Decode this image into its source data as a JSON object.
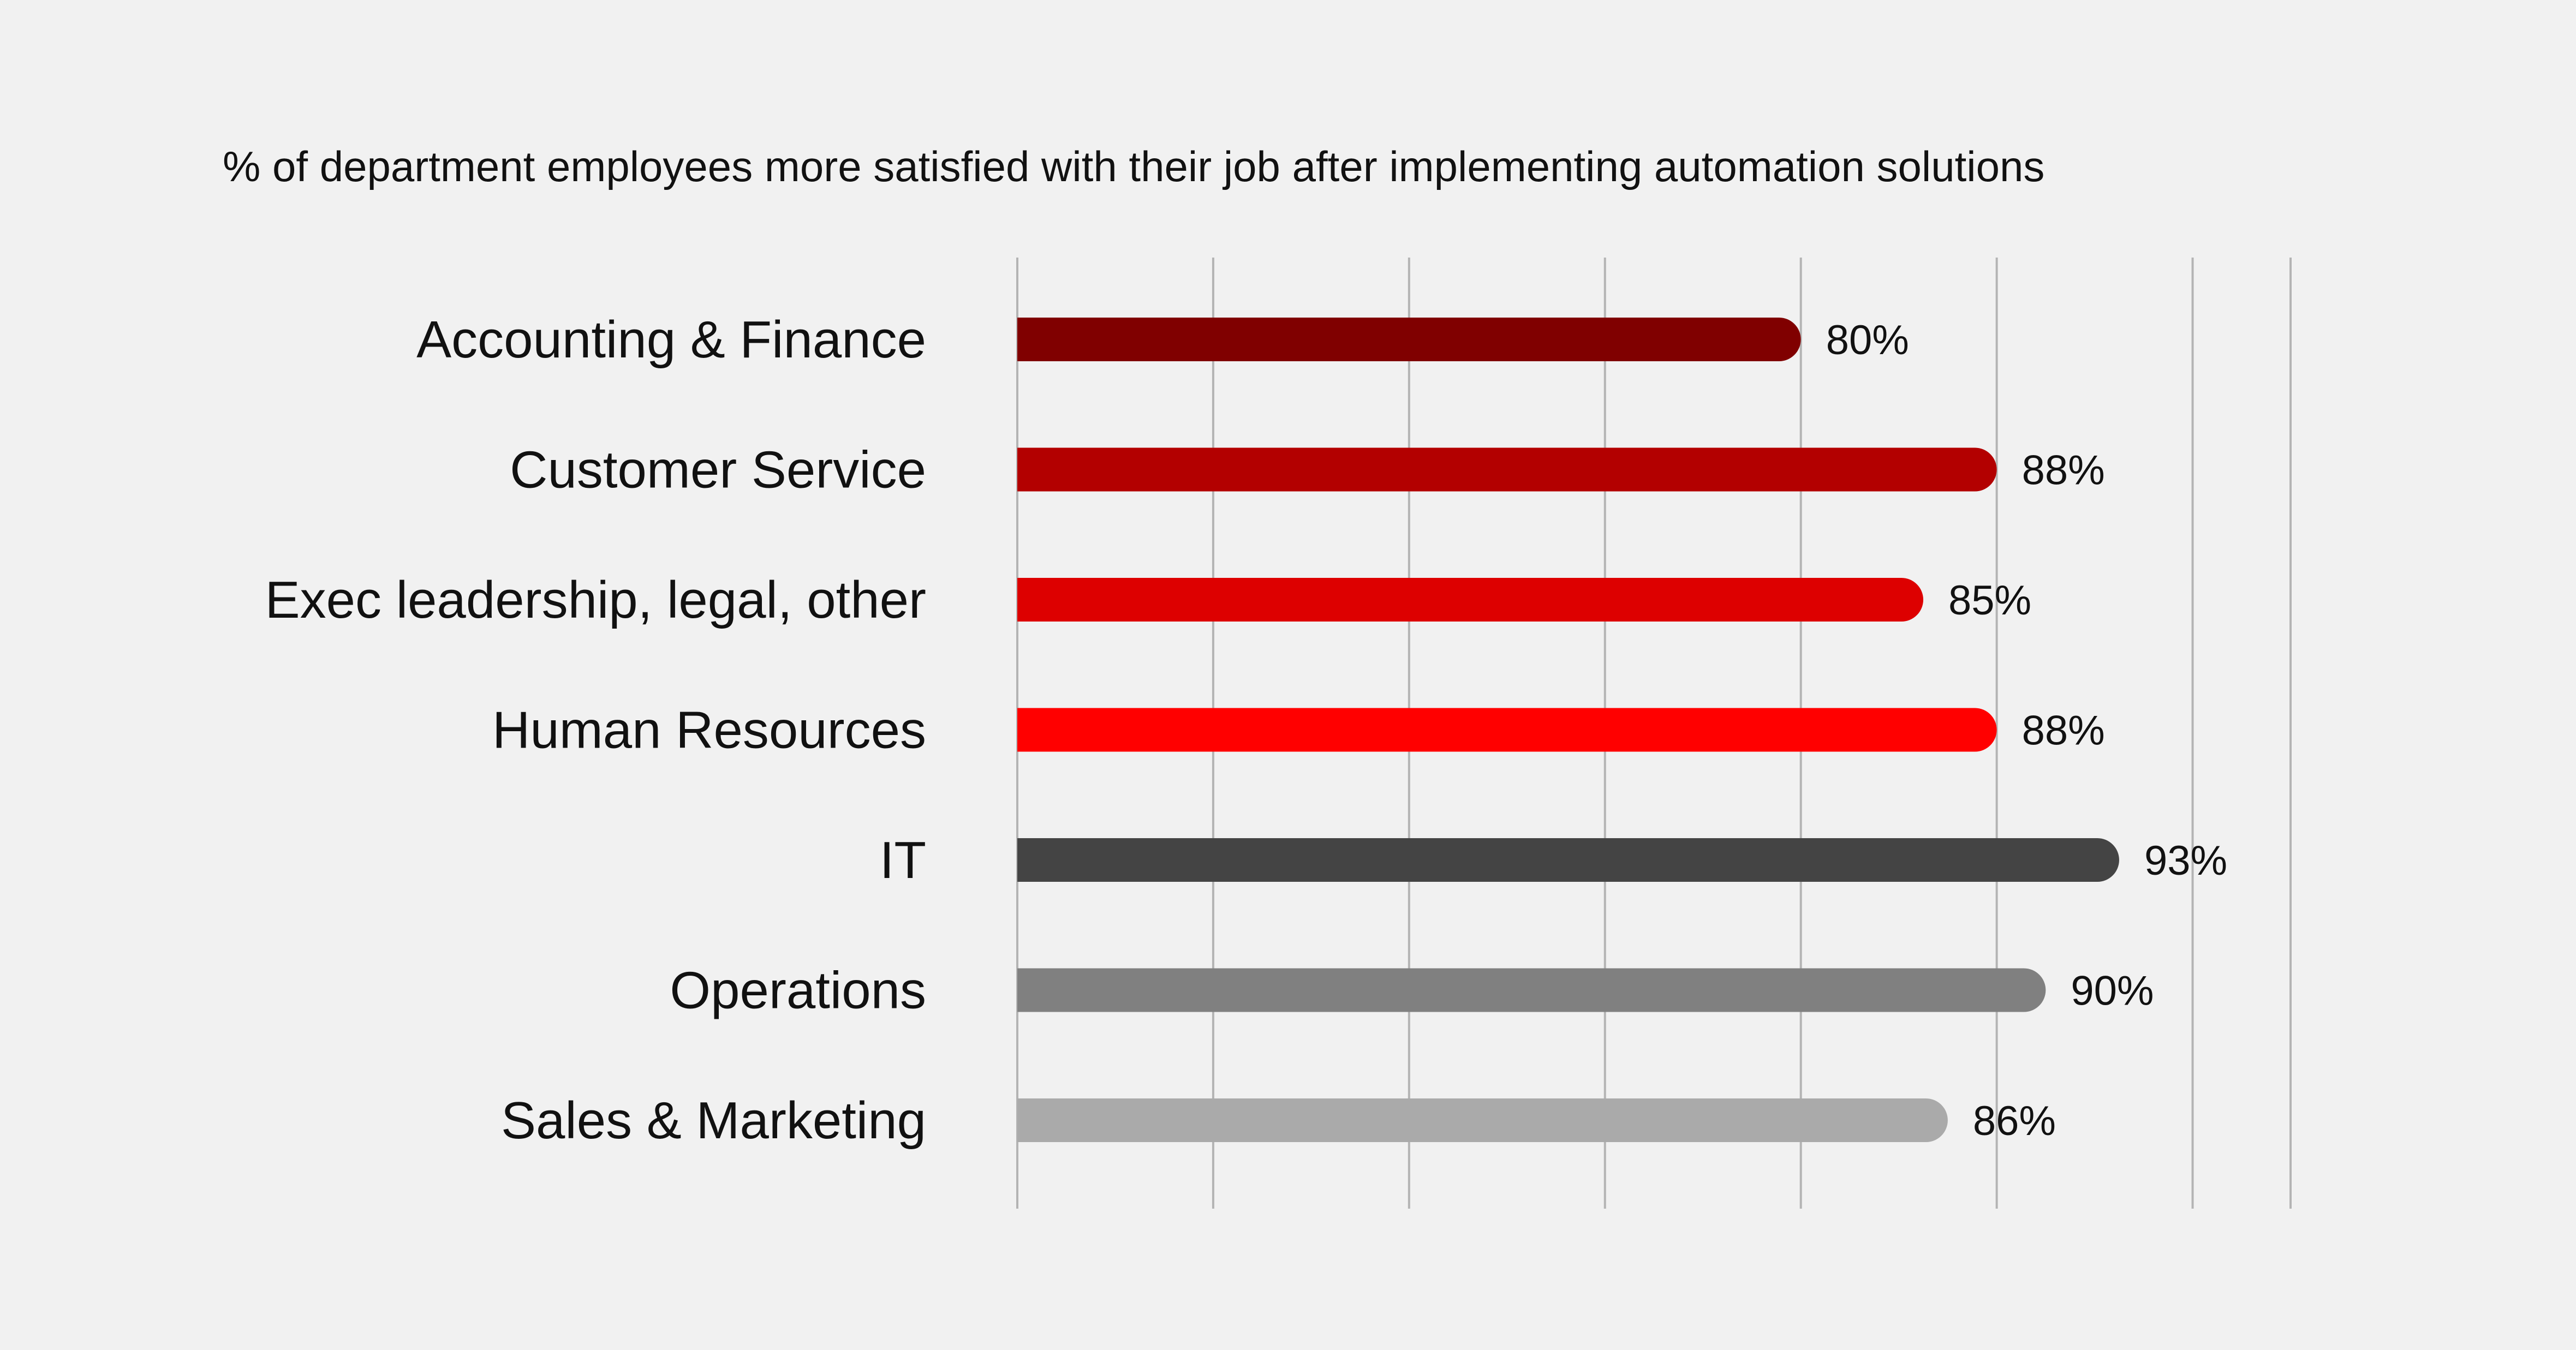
{
  "chart_data": {
    "type": "bar",
    "orientation": "horizontal",
    "title": "% of department employees more satisfied with their job after implementing automation solutions",
    "categories": [
      "Accounting & Finance",
      "Customer Service",
      "Exec leadership, legal, other",
      "Human Resources",
      "IT",
      "Operations",
      "Sales & Marketing"
    ],
    "values": [
      80,
      88,
      85,
      88,
      93,
      90,
      86
    ],
    "value_labels": [
      "80%",
      "88%",
      "85%",
      "88%",
      "93%",
      "90%",
      "86%"
    ],
    "bar_colors": [
      "#800000",
      "#b30000",
      "#dd0000",
      "#ff0000",
      "#444444",
      "#808080",
      "#aaaaaa"
    ],
    "xlim": [
      48,
      100
    ],
    "gridlines": [
      48,
      56,
      64,
      72,
      80,
      88,
      96,
      100
    ],
    "grid": true,
    "xlabel": "",
    "ylabel": ""
  }
}
